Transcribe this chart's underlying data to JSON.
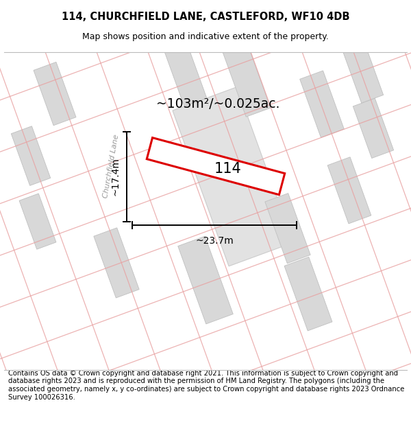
{
  "title": "114, CHURCHFIELD LANE, CASTLEFORD, WF10 4DB",
  "subtitle": "Map shows position and indicative extent of the property.",
  "footer": "Contains OS data © Crown copyright and database right 2021. This information is subject to Crown copyright and database rights 2023 and is reproduced with the permission of HM Land Registry. The polygons (including the associated geometry, namely x, y co-ordinates) are subject to Crown copyright and database rights 2023 Ordnance Survey 100026316.",
  "area_label": "~103m²/~0.025ac.",
  "width_label": "~23.7m",
  "height_label": "~17.4m",
  "property_label": "114",
  "bg_color": "#efefef",
  "road_color": "#ffffff",
  "building_color": "#d8d8d8",
  "building_edge_color": "#c0c0c0",
  "grid_line_color": "#e8a0a0",
  "property_edge_color": "#dd0000",
  "property_fill_color": "#ffffff",
  "road_label": "Churchfield Lane",
  "title_fontsize": 10.5,
  "subtitle_fontsize": 9,
  "footer_fontsize": 7.2,
  "label_fontsize": 10,
  "road_label_fontsize": 8
}
